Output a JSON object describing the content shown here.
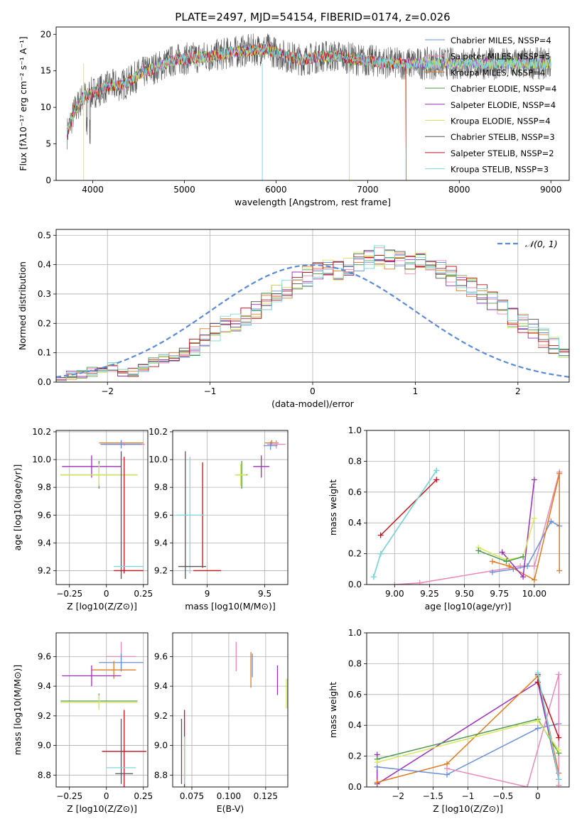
{
  "chart_data": [
    {
      "type": "line",
      "title": "PLATE=2497, MJD=54154, FIBERID=0174, z=0.026",
      "xlabel": "wavelength [Angstrom, rest frame]",
      "ylabel": "Flux [fλ10⁻¹⁷ erg cm⁻² s⁻¹ A⁻¹]",
      "xlim": [
        3600,
        9200
      ],
      "ylim": [
        0,
        21
      ],
      "xticks": [
        4000,
        5000,
        6000,
        7000,
        8000,
        9000
      ],
      "yticks": [
        0,
        5,
        10,
        15,
        20
      ],
      "legend_position": "top-right",
      "continuum": {
        "x": [
          3720,
          3800,
          3900,
          4000,
          4100,
          4200,
          4300,
          4400,
          4500,
          4700,
          4900,
          5100,
          5300,
          5500,
          5700,
          5900,
          6100,
          6300,
          6500,
          6700,
          6900,
          7100,
          7300,
          7420
        ],
        "y": [
          6.5,
          9.5,
          11.5,
          12.0,
          12.5,
          13.0,
          13.0,
          13.5,
          14.5,
          15.5,
          16.5,
          16.8,
          17.0,
          17.5,
          17.8,
          18.0,
          17.0,
          16.5,
          17.0,
          17.0,
          16.5,
          16.3,
          16.0,
          16.0
        ]
      },
      "series": [
        {
          "name": "Chabrier MILES, N_SSP=4",
          "color": "#6a8fd8"
        },
        {
          "name": "Salpeter MILES, N_SSP=5",
          "color": "#e889b9"
        },
        {
          "name": "Kroupa MILES, N_SSP=4",
          "color": "#e07b20"
        },
        {
          "name": "Chabrier ELODIE, N_SSP=4",
          "color": "#4f9a4f"
        },
        {
          "name": "Salpeter ELODIE, N_SSP=4",
          "color": "#9b2fb5"
        },
        {
          "name": "Kroupa ELODIE, N_SSP=4",
          "color": "#d8e85a"
        },
        {
          "name": "Chabrier STELIB, N_SSP=3",
          "color": "#555555"
        },
        {
          "name": "Salpeter STELIB, N_SSP=2",
          "color": "#c0141a"
        },
        {
          "name": "Kroupa STELIB, N_SSP=3",
          "color": "#7fd8e0"
        }
      ]
    },
    {
      "type": "line",
      "xlabel": "(data-model)/error",
      "ylabel": "Normed distribution",
      "xlim": [
        -2.5,
        2.5
      ],
      "ylim": [
        0,
        0.52
      ],
      "xticks": [
        -2,
        -1,
        0,
        1,
        2
      ],
      "yticks": [
        0.0,
        0.1,
        0.2,
        0.3,
        0.4,
        0.5
      ],
      "legend": "𝒩(0, 1)",
      "legend_position": "top-right",
      "histogram": {
        "bin_width": 0.1,
        "x_start": -2.5,
        "values": [
          0.015,
          0.02,
          0.03,
          0.035,
          0.045,
          0.05,
          0.03,
          0.035,
          0.05,
          0.07,
          0.08,
          0.085,
          0.1,
          0.12,
          0.15,
          0.17,
          0.19,
          0.2,
          0.22,
          0.25,
          0.28,
          0.3,
          0.32,
          0.34,
          0.36,
          0.38,
          0.39,
          0.38,
          0.39,
          0.41,
          0.42,
          0.43,
          0.42,
          0.41,
          0.4,
          0.41,
          0.4,
          0.38,
          0.36,
          0.34,
          0.32,
          0.3,
          0.28,
          0.26,
          0.22,
          0.2,
          0.18,
          0.15,
          0.12,
          0.1,
          0.085,
          0.07,
          0.055,
          0.045,
          0.04,
          0.035,
          0.03,
          0.025,
          0.02,
          0.02
        ]
      },
      "series_colors": [
        "#6a8fd8",
        "#e889b9",
        "#e07b20",
        "#4f9a4f",
        "#9b2fb5",
        "#d8e85a",
        "#555555",
        "#c0141a",
        "#7fd8e0"
      ]
    },
    {
      "type": "scatter",
      "xlabel": "Z [log10(Z/Z⊙)]",
      "ylabel": "age  [log10(age/yr)]",
      "xlim": [
        -0.34,
        0.28
      ],
      "ylim": [
        9.1,
        10.21
      ],
      "xticks": [
        -0.25,
        0.0,
        0.25
      ],
      "yticks": [
        9.2,
        9.4,
        9.6,
        9.8,
        10.0,
        10.2
      ],
      "points": [
        {
          "x": 0.1,
          "y": 10.12,
          "xerr": 0.15,
          "yerr": 0.02,
          "color": "#e07b20"
        },
        {
          "x": 0.12,
          "y": 10.11,
          "xerr": 0.14,
          "yerr": 0.01,
          "color": "#e889b9"
        },
        {
          "x": 0.1,
          "y": 10.11,
          "xerr": 0.14,
          "yerr": 0.03,
          "color": "#6a8fd8"
        },
        {
          "x": -0.1,
          "y": 9.95,
          "xerr": 0.2,
          "yerr": 0.08,
          "color": "#9b2fb5"
        },
        {
          "x": -0.05,
          "y": 9.89,
          "xerr": 0.26,
          "yerr": 0.1,
          "color": "#4f9a4f"
        },
        {
          "x": -0.05,
          "y": 9.89,
          "xerr": 0.26,
          "yerr": 0.08,
          "color": "#d8e85a"
        },
        {
          "x": 0.1,
          "y": 9.6,
          "xerr": 0.0,
          "yerr": 0.46,
          "color": "#555555"
        },
        {
          "x": 0.12,
          "y": 9.6,
          "xerr": 0.0,
          "yerr": 0.42,
          "color": "#c0141a"
        },
        {
          "x": 0.15,
          "y": 9.23,
          "xerr": 0.1,
          "yerr": 0.0,
          "color": "#7fd8e0"
        },
        {
          "x": 0.15,
          "y": 9.2,
          "xerr": 0.1,
          "yerr": 0.0,
          "color": "#c0141a"
        }
      ]
    },
    {
      "type": "scatter",
      "xlabel": "mass [log10(M/M⊙)]",
      "xlim": [
        8.7,
        9.7
      ],
      "ylim": [
        9.1,
        10.21
      ],
      "xticks": [
        9.0,
        9.5
      ],
      "yticks": [
        9.2,
        9.4,
        9.6,
        9.8,
        10.0,
        10.2
      ],
      "points": [
        {
          "x": 9.56,
          "y": 10.12,
          "xerr": 0.06,
          "yerr": 0.02,
          "color": "#e07b20"
        },
        {
          "x": 9.6,
          "y": 10.11,
          "xerr": 0.08,
          "yerr": 0.03,
          "color": "#e889b9"
        },
        {
          "x": 9.55,
          "y": 10.1,
          "xerr": 0.06,
          "yerr": 0.03,
          "color": "#6a8fd8"
        },
        {
          "x": 9.47,
          "y": 9.95,
          "xerr": 0.07,
          "yerr": 0.08,
          "color": "#9b2fb5"
        },
        {
          "x": 9.3,
          "y": 9.89,
          "xerr": 0.05,
          "yerr": 0.1,
          "color": "#4f9a4f"
        },
        {
          "x": 9.29,
          "y": 9.89,
          "xerr": 0.05,
          "yerr": 0.08,
          "color": "#d8e85a"
        },
        {
          "x": 8.81,
          "y": 9.6,
          "xerr": 0.0,
          "yerr": 0.46,
          "color": "#555555"
        },
        {
          "x": 8.96,
          "y": 9.6,
          "xerr": 0.0,
          "yerr": 0.38,
          "color": "#c0141a"
        },
        {
          "x": 8.85,
          "y": 9.6,
          "xerr": 0.12,
          "yerr": 0.42,
          "color": "#7fd8e0"
        },
        {
          "x": 9.0,
          "y": 9.2,
          "xerr": 0.12,
          "yerr": 0.0,
          "color": "#c0141a"
        },
        {
          "x": 8.87,
          "y": 9.23,
          "xerr": 0.12,
          "yerr": 0.0,
          "color": "#555555"
        }
      ]
    },
    {
      "type": "line",
      "xlabel": "age  [log10(age/yr)]",
      "ylabel": "mass weight",
      "xlim": [
        8.8,
        10.25
      ],
      "ylim": [
        0,
        1
      ],
      "xticks": [
        9.0,
        9.25,
        9.5,
        9.75,
        10.0
      ],
      "xtick_labels": [
        "9.00",
        "9.25",
        "9.50",
        "9.75",
        "10.00"
      ],
      "yticks": [
        0.0,
        0.2,
        0.4,
        0.6,
        0.8,
        1.0
      ],
      "series": [
        {
          "color": "#c0141a",
          "x": [
            8.9,
            9.3
          ],
          "y": [
            0.32,
            0.68
          ]
        },
        {
          "color": "#4f9a4f",
          "x": [
            8.85,
            8.9,
            9.3
          ],
          "y": [
            0.05,
            0.2,
            0.74
          ]
        },
        {
          "color": "#7fd8e0",
          "x": [
            8.85,
            8.9,
            9.3
          ],
          "y": [
            0.05,
            0.2,
            0.74
          ]
        },
        {
          "color": "#e889b9",
          "x": [
            9.0,
            9.18,
            9.9,
            10.0,
            10.18
          ],
          "y": [
            0.0,
            0.01,
            0.12,
            0.12,
            0.73
          ]
        },
        {
          "color": "#6a8fd8",
          "x": [
            9.7,
            9.85,
            9.95,
            10.12,
            10.18
          ],
          "y": [
            0.08,
            0.1,
            0.12,
            0.41,
            0.38
          ]
        },
        {
          "color": "#e07b20",
          "x": [
            9.7,
            9.82,
            10.0,
            10.18,
            10.18
          ],
          "y": [
            0.15,
            0.12,
            0.03,
            0.72,
            0.09
          ]
        },
        {
          "color": "#9b2fb5",
          "x": [
            9.77,
            9.92,
            10.0
          ],
          "y": [
            0.21,
            0.05,
            0.68
          ]
        },
        {
          "color": "#d8e85a",
          "x": [
            9.6,
            9.8,
            9.92,
            10.0
          ],
          "y": [
            0.24,
            0.16,
            0.18,
            0.43
          ]
        },
        {
          "color": "#4f9a4f",
          "x": [
            9.6,
            9.8,
            9.92
          ],
          "y": [
            0.22,
            0.15,
            0.18
          ]
        }
      ]
    },
    {
      "type": "scatter",
      "xlabel": "Z [log10(Z/Z⊙)]",
      "ylabel": "mass [log10(M/M⊙)]",
      "xlim": [
        -0.34,
        0.28
      ],
      "ylim": [
        8.72,
        9.76
      ],
      "xticks": [
        -0.25,
        0.0,
        0.25
      ],
      "yticks": [
        8.8,
        9.0,
        9.2,
        9.4,
        9.6
      ],
      "points": [
        {
          "x": 0.1,
          "y": 9.6,
          "xerr": 0.1,
          "yerr": 0.1,
          "color": "#e889b9"
        },
        {
          "x": 0.1,
          "y": 9.56,
          "xerr": 0.15,
          "yerr": 0.06,
          "color": "#6a8fd8"
        },
        {
          "x": 0.05,
          "y": 9.51,
          "xerr": 0.15,
          "yerr": 0.06,
          "color": "#e07b20"
        },
        {
          "x": -0.1,
          "y": 9.47,
          "xerr": 0.2,
          "yerr": 0.07,
          "color": "#9b2fb5"
        },
        {
          "x": -0.05,
          "y": 9.3,
          "xerr": 0.26,
          "yerr": 0.05,
          "color": "#4f9a4f"
        },
        {
          "x": -0.05,
          "y": 9.29,
          "xerr": 0.26,
          "yerr": 0.05,
          "color": "#d8e85a"
        },
        {
          "x": 0.12,
          "y": 8.96,
          "xerr": 0.15,
          "yerr": 0.28,
          "color": "#c0141a"
        },
        {
          "x": 0.1,
          "y": 8.96,
          "xerr": 0.0,
          "yerr": 0.22,
          "color": "#555555"
        },
        {
          "x": 0.1,
          "y": 8.85,
          "xerr": 0.1,
          "yerr": 0.0,
          "color": "#7fd8e0"
        },
        {
          "x": 0.12,
          "y": 8.81,
          "xerr": 0.06,
          "yerr": 0.0,
          "color": "#555555"
        }
      ]
    },
    {
      "type": "scatter",
      "xlabel": "E(B-V)",
      "xlim": [
        0.062,
        0.14
      ],
      "ylim": [
        8.72,
        9.76
      ],
      "xticks": [
        0.075,
        0.1,
        0.125
      ],
      "xtick_labels": [
        "0.075",
        "0.100",
        "0.125"
      ],
      "yticks": [
        8.8,
        9.0,
        9.2,
        9.4,
        9.6
      ],
      "points": [
        {
          "x": 0.105,
          "y": 9.6,
          "yerr": 0.1,
          "color": "#e889b9"
        },
        {
          "x": 0.115,
          "y": 9.51,
          "yerr": 0.12,
          "color": "#e07b20"
        },
        {
          "x": 0.116,
          "y": 9.54,
          "yerr": 0.08,
          "color": "#6a8fd8"
        },
        {
          "x": 0.133,
          "y": 9.44,
          "yerr": 0.1,
          "color": "#9b2fb5"
        },
        {
          "x": 0.139,
          "y": 9.35,
          "yerr": 0.1,
          "color": "#d8e85a"
        },
        {
          "x": 0.14,
          "y": 9.35,
          "yerr": 0.1,
          "color": "#4f9a4f"
        },
        {
          "x": 0.07,
          "y": 8.96,
          "yerr": 0.28,
          "color": "#c0141a"
        },
        {
          "x": 0.068,
          "y": 8.96,
          "yerr": 0.22,
          "color": "#555555"
        },
        {
          "x": 0.07,
          "y": 8.9,
          "yerr": 0.16,
          "color": "#7fd8e0"
        }
      ]
    },
    {
      "type": "line",
      "xlabel": "Z [log10(Z/Z⊙)]",
      "ylabel": "mass weight",
      "xlim": [
        -2.45,
        0.45
      ],
      "ylim": [
        0,
        1
      ],
      "xticks": [
        -2.0,
        -1.5,
        -1.0,
        -0.5,
        0.0
      ],
      "yticks": [
        0.0,
        0.2,
        0.4,
        0.6,
        0.8,
        1.0
      ],
      "series": [
        {
          "color": "#9b2fb5",
          "x": [
            -2.3,
            -2.3,
            0.0,
            0.3
          ],
          "y": [
            0.21,
            0.02,
            0.68,
            0.05
          ]
        },
        {
          "color": "#e07b20",
          "x": [
            -2.3,
            -1.3,
            0.0,
            0.3
          ],
          "y": [
            0.03,
            0.15,
            0.72,
            0.09
          ]
        },
        {
          "color": "#6a8fd8",
          "x": [
            -2.3,
            -1.3,
            0.0,
            0.3
          ],
          "y": [
            0.13,
            0.08,
            0.38,
            0.41
          ]
        },
        {
          "color": "#e889b9",
          "x": [
            -1.3,
            -0.15,
            0.3,
            0.3
          ],
          "y": [
            0.12,
            0.0,
            0.73,
            0.01
          ]
        },
        {
          "color": "#4f9a4f",
          "x": [
            -2.3,
            0.0,
            0.3
          ],
          "y": [
            0.18,
            0.44,
            0.22
          ]
        },
        {
          "color": "#d8e85a",
          "x": [
            -2.3,
            0.0,
            0.3
          ],
          "y": [
            0.16,
            0.43,
            0.24
          ]
        },
        {
          "color": "#c0141a",
          "x": [
            0.0,
            0.3
          ],
          "y": [
            0.68,
            0.32
          ]
        },
        {
          "color": "#555555",
          "x": [
            0.0,
            0.3
          ],
          "y": [
            0.73,
            0.05
          ]
        },
        {
          "color": "#7fd8e0",
          "x": [
            0.0,
            0.3
          ],
          "y": [
            0.74,
            0.05
          ]
        }
      ]
    }
  ]
}
